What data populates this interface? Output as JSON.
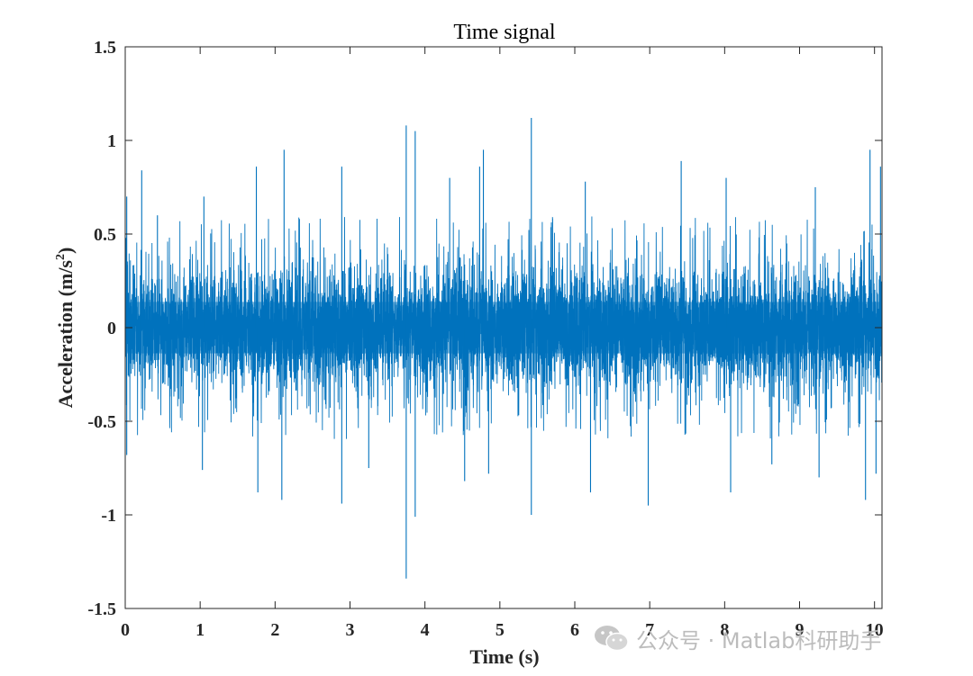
{
  "chart_data": {
    "type": "line",
    "title": "Time signal",
    "xlabel": "Time (s)",
    "ylabel": "Acceleration (m/s",
    "ylabel_superscript": "2",
    "ylabel_close": ")",
    "xlim": [
      0,
      10.1
    ],
    "ylim": [
      -1.5,
      1.5
    ],
    "xticks": [
      0,
      1,
      2,
      3,
      4,
      5,
      6,
      7,
      8,
      9,
      10
    ],
    "xtick_labels": [
      "0",
      "1",
      "2",
      "3",
      "4",
      "5",
      "6",
      "7",
      "8",
      "9",
      "10"
    ],
    "yticks": [
      -1.5,
      -1,
      -0.5,
      0,
      0.5,
      1,
      1.5
    ],
    "ytick_labels": [
      "-1.5",
      "-1",
      "-0.5",
      "0",
      "0.5",
      "1",
      "1.5"
    ],
    "grid": false,
    "series": [
      {
        "color": "#0072BD",
        "sampling": "dense random vibration signal, approx. 8000 samples over 0–10.1 s, envelope about ±0.3 with spikes",
        "envelope": {
          "core_abs": 0.25,
          "typical_peak_abs": 0.55
        },
        "peaks": [
          {
            "x": 0.02,
            "y": 0.7
          },
          {
            "x": 0.22,
            "y": 0.84
          },
          {
            "x": 0.43,
            "y": 0.6
          },
          {
            "x": 1.05,
            "y": 0.7
          },
          {
            "x": 1.75,
            "y": 0.86
          },
          {
            "x": 2.12,
            "y": 0.95
          },
          {
            "x": 2.89,
            "y": 0.86
          },
          {
            "x": 3.75,
            "y": 1.08
          },
          {
            "x": 3.87,
            "y": 1.05
          },
          {
            "x": 4.33,
            "y": 0.8
          },
          {
            "x": 4.73,
            "y": 0.86
          },
          {
            "x": 4.78,
            "y": 0.95
          },
          {
            "x": 5.42,
            "y": 1.12
          },
          {
            "x": 6.14,
            "y": 0.78
          },
          {
            "x": 7.42,
            "y": 0.89
          },
          {
            "x": 8.02,
            "y": 0.8
          },
          {
            "x": 9.21,
            "y": 0.75
          },
          {
            "x": 9.94,
            "y": 0.95
          },
          {
            "x": 10.08,
            "y": 0.86
          }
        ],
        "troughs": [
          {
            "x": 0.02,
            "y": -0.68
          },
          {
            "x": 1.03,
            "y": -0.76
          },
          {
            "x": 1.77,
            "y": -0.88
          },
          {
            "x": 2.09,
            "y": -0.92
          },
          {
            "x": 2.89,
            "y": -0.94
          },
          {
            "x": 3.25,
            "y": -0.75
          },
          {
            "x": 3.75,
            "y": -1.34
          },
          {
            "x": 3.87,
            "y": -1.01
          },
          {
            "x": 4.53,
            "y": -0.82
          },
          {
            "x": 4.85,
            "y": -0.78
          },
          {
            "x": 5.42,
            "y": -1.0
          },
          {
            "x": 6.21,
            "y": -0.88
          },
          {
            "x": 6.98,
            "y": -0.95
          },
          {
            "x": 8.08,
            "y": -0.88
          },
          {
            "x": 8.63,
            "y": -0.73
          },
          {
            "x": 9.26,
            "y": -0.8
          },
          {
            "x": 9.88,
            "y": -0.92
          },
          {
            "x": 10.02,
            "y": -0.78
          }
        ]
      }
    ]
  },
  "watermark": {
    "text": "公众号 · Matlab科研助手",
    "icon": "wechat-icon"
  }
}
